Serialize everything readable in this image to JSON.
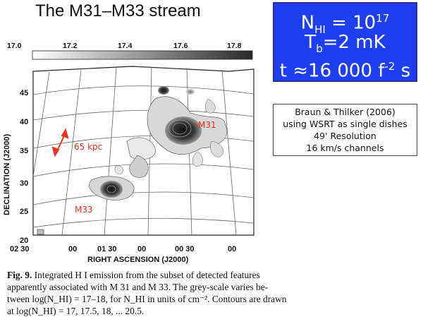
{
  "title": "The M31–M33 stream",
  "parameters": {
    "nhi_prefix": "N",
    "nhi_sub": "HI",
    "nhi_mid": " = 10",
    "nhi_sup": "17",
    "tb_prefix": "T",
    "tb_sub": "b",
    "tb_rest": "=2 mK",
    "t_main": "t ≈16 000 f",
    "t_sup": "-2",
    "t_unit": " s"
  },
  "reference": {
    "line1": "Braun & Thilker (2006)",
    "line2": "using WSRT as single dishes",
    "line3": "49' Resolution",
    "line4": "16 km/s channels"
  },
  "figure": {
    "colorbar_ticks": [
      "17.0",
      "17.2",
      "17.4",
      "17.6",
      "17.8"
    ],
    "ylabel": "DECLINATION (J2000)",
    "xlabel": "RIGHT ASCENSION (J2000)",
    "y_ticks": [
      "45",
      "40",
      "35",
      "30",
      "25",
      "20"
    ],
    "x_ticks": [
      "02 30",
      "00",
      "01 30",
      "00",
      "00 30",
      "00"
    ],
    "annotations": {
      "m31": "M31",
      "m33": "M33",
      "scale": "65 kpc"
    },
    "annotation_color": "#e8341c"
  },
  "caption": {
    "fig_label": "Fig. 9.",
    "line1": " Integrated H I emission from the subset of detected features",
    "line2": "apparently associated with M 31 and M 33. The grey-scale varies be-",
    "line3": "tween log(N_HI) = 17–18, for N_HI in units of cm⁻². Contours are drawn",
    "line4": "at log(N_HI) = 17, 17.5, 18, ... 20.5."
  }
}
